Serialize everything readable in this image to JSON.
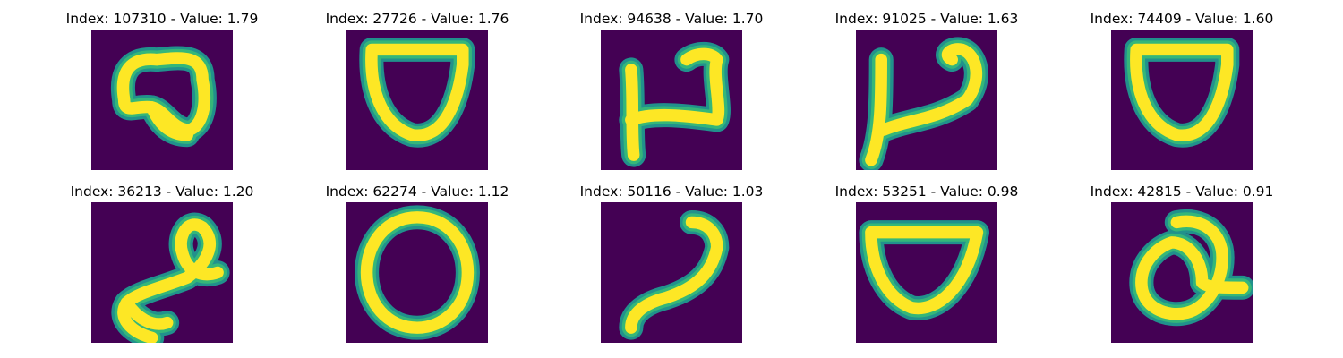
{
  "figure": {
    "panels": [
      {
        "index": "107310",
        "value": "1.79",
        "title": "Index: 107310 - Value: 1.79",
        "glyph": "loop-blob"
      },
      {
        "index": "27726",
        "value": "1.76",
        "title": "Index: 27726 - Value: 1.76",
        "glyph": "cup-bar"
      },
      {
        "index": "94638",
        "value": "1.70",
        "title": "Index: 94638 - Value: 1.70",
        "glyph": "stem-hook"
      },
      {
        "index": "91025",
        "value": "1.63",
        "title": "Index: 91025 - Value: 1.63",
        "glyph": "stem-hook-tall"
      },
      {
        "index": "74409",
        "value": "1.60",
        "title": "Index: 74409 - Value: 1.60",
        "glyph": "cup-bar"
      },
      {
        "index": "36213",
        "value": "1.20",
        "title": "Index: 36213 - Value: 1.20",
        "glyph": "curl"
      },
      {
        "index": "62274",
        "value": "1.12",
        "title": "Index: 62274 - Value: 1.12",
        "glyph": "ring"
      },
      {
        "index": "50116",
        "value": "1.03",
        "title": "Index: 50116 - Value: 1.03",
        "glyph": "hook-slash"
      },
      {
        "index": "53251",
        "value": "0.98",
        "title": "Index: 53251 - Value: 0.98",
        "glyph": "cup-bar-wide"
      },
      {
        "index": "42815",
        "value": "0.91",
        "title": "Index: 42815 - Value: 0.91",
        "glyph": "q-ring"
      }
    ]
  },
  "colors": {
    "background": "#440154",
    "stroke_core": "#fde725",
    "stroke_edge": "#35b779",
    "stroke_halo": "#21918c"
  }
}
